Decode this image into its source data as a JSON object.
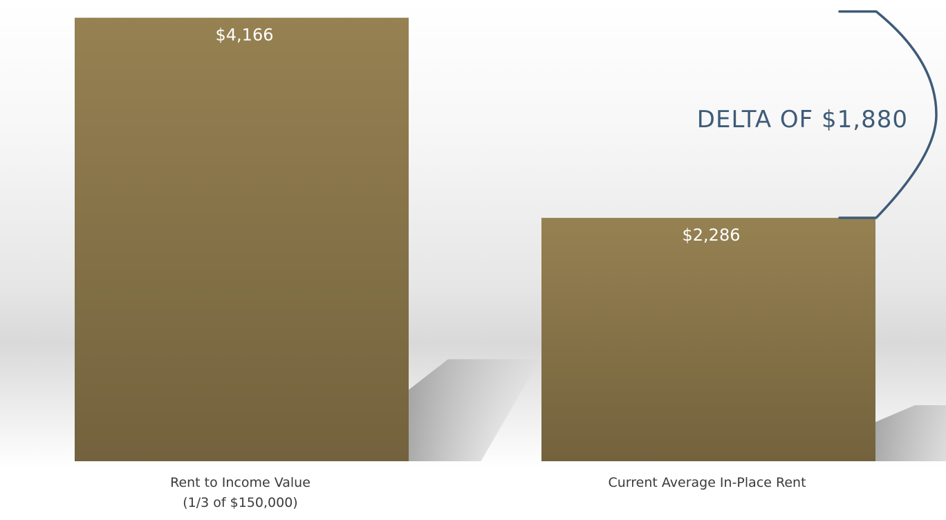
{
  "chart_data": {
    "type": "bar",
    "categories": [
      "Rent to Income Value\n(1/3 of $150,000)",
      "Current Average In-Place Rent"
    ],
    "values": [
      4166,
      2286
    ],
    "value_labels": [
      "$4,166",
      "$2,286"
    ],
    "ylim": [
      0,
      4300
    ],
    "grid": false,
    "annotation": {
      "text": "DELTA OF $1,880",
      "between": [
        0,
        1
      ],
      "value": 1880
    },
    "colors": {
      "bar_top": "#968152",
      "bar_bottom": "#73623d",
      "annotation": "#3e5b78",
      "label": "#3a3a3a",
      "value_label": "#ffffff"
    }
  }
}
